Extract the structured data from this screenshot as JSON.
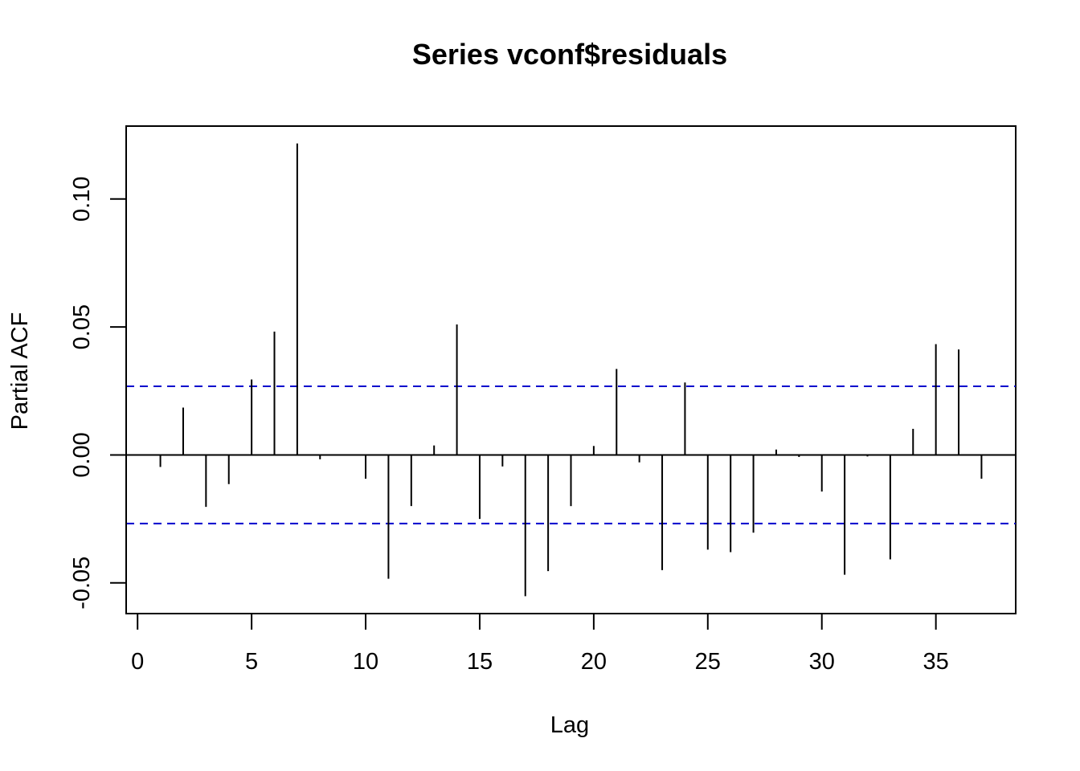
{
  "chart_data": {
    "type": "bar",
    "title": "Series  vconf$residuals",
    "xlabel": "Lag",
    "ylabel": "Partial ACF",
    "xlim": [
      -0.5,
      38.5
    ],
    "ylim": [
      -0.062,
      0.1285
    ],
    "x_ticks": [
      0,
      5,
      10,
      15,
      20,
      25,
      30,
      35
    ],
    "y_ticks": [
      -0.05,
      0.0,
      0.05,
      0.1
    ],
    "y_tick_labels": [
      "-0.05",
      "0.00",
      "0.05",
      "0.10"
    ],
    "confidence_bound": 0.0268,
    "colors": {
      "bars": "#000000",
      "bounds": "#0000CD",
      "zero_line": "#000000",
      "frame": "#000000"
    },
    "x": [
      1,
      2,
      3,
      4,
      5,
      6,
      7,
      8,
      9,
      10,
      11,
      12,
      13,
      14,
      15,
      16,
      17,
      18,
      19,
      20,
      21,
      22,
      23,
      24,
      25,
      26,
      27,
      28,
      29,
      30,
      31,
      32,
      33,
      34,
      35,
      36,
      37
    ],
    "values": [
      -0.0047,
      0.0185,
      -0.0203,
      -0.0114,
      0.0295,
      0.0482,
      0.1217,
      -0.0017,
      0.0003,
      -0.0093,
      -0.0484,
      -0.02,
      0.0037,
      0.051,
      -0.025,
      -0.0045,
      -0.0552,
      -0.0454,
      -0.02,
      0.0035,
      0.0336,
      -0.0029,
      -0.045,
      0.0283,
      -0.037,
      -0.038,
      -0.0304,
      0.0021,
      -0.0008,
      -0.0143,
      -0.0468,
      -0.0006,
      -0.0408,
      0.0102,
      0.0433,
      0.0412,
      -0.0093
    ]
  }
}
